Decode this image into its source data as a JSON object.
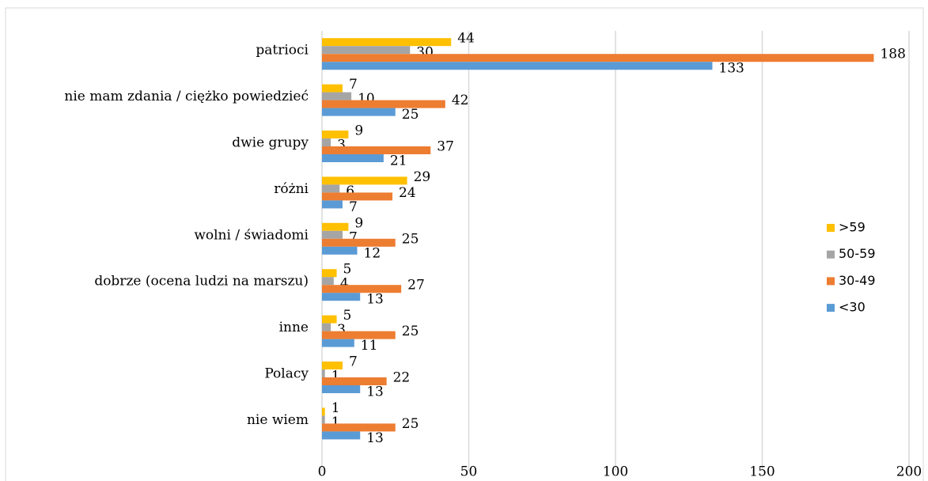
{
  "chart_data": {
    "type": "bar",
    "orientation": "horizontal",
    "categories": [
      "patrioci",
      "nie mam zdania / ciężko powiedzieć",
      "dwie grupy",
      "różni",
      "wolni / świadomi",
      "dobrze (ocena ludzi na marszu)",
      "inne",
      "Polacy",
      "nie wiem"
    ],
    "series": [
      {
        "name": ">59",
        "color": "#FFC000",
        "values": [
          44,
          7,
          9,
          29,
          9,
          5,
          5,
          7,
          1
        ]
      },
      {
        "name": "50-59",
        "color": "#A5A5A5",
        "values": [
          30,
          10,
          3,
          6,
          7,
          4,
          3,
          1,
          1
        ]
      },
      {
        "name": "30-49",
        "color": "#ED7D31",
        "values": [
          188,
          42,
          37,
          24,
          25,
          27,
          25,
          22,
          25
        ]
      },
      {
        "name": "<30",
        "color": "#5B9BD5",
        "values": [
          133,
          25,
          21,
          7,
          12,
          13,
          11,
          13,
          13
        ]
      }
    ],
    "xlim": [
      0,
      200
    ],
    "xticks": [
      0,
      50,
      100,
      150,
      200
    ],
    "grid": true,
    "legend": "right"
  }
}
